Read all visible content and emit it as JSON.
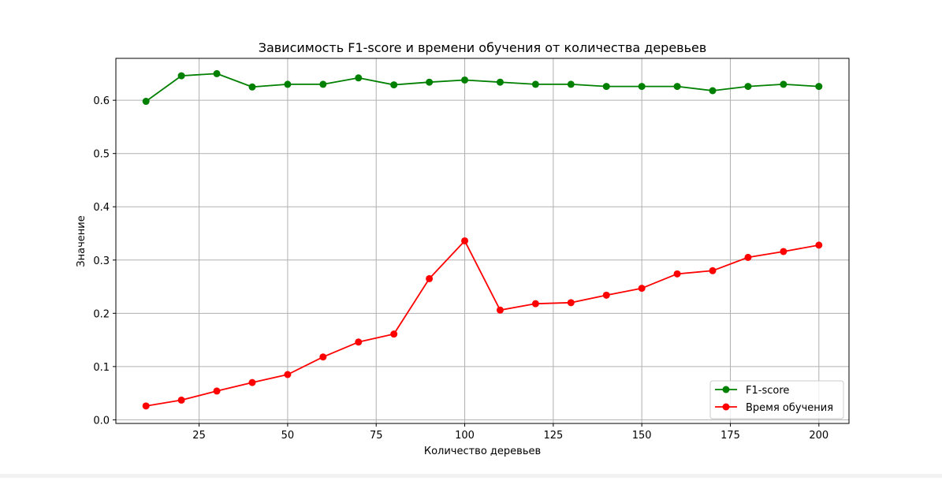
{
  "chart_data": {
    "type": "line",
    "title": "Зависимость F1-score и времени обучения от количества деревьев",
    "xlabel": "Количество деревьев",
    "ylabel": "Значение",
    "x": [
      10,
      20,
      30,
      40,
      50,
      60,
      70,
      80,
      90,
      100,
      110,
      120,
      130,
      140,
      150,
      160,
      170,
      180,
      190,
      200
    ],
    "xlim": [
      1.5,
      208.5
    ],
    "ylim": [
      -0.0068,
      0.6787
    ],
    "xticks": [
      25,
      50,
      75,
      100,
      125,
      150,
      175,
      200
    ],
    "yticks": [
      0.0,
      0.1,
      0.2,
      0.3,
      0.4,
      0.5,
      0.6
    ],
    "xtick_labels": [
      "25",
      "50",
      "75",
      "100",
      "125",
      "150",
      "175",
      "200"
    ],
    "ytick_labels": [
      "0.0",
      "0.1",
      "0.2",
      "0.3",
      "0.4",
      "0.5",
      "0.6"
    ],
    "grid": true,
    "legend_position": "lower-right",
    "series": [
      {
        "name": "F1-score",
        "color": "#008000",
        "marker": "circle",
        "values": [
          0.598,
          0.646,
          0.65,
          0.625,
          0.63,
          0.63,
          0.642,
          0.629,
          0.634,
          0.638,
          0.634,
          0.63,
          0.63,
          0.626,
          0.626,
          0.626,
          0.618,
          0.626,
          0.63,
          0.626
        ]
      },
      {
        "name": "Время обучения",
        "color": "#ff0000",
        "marker": "circle",
        "values": [
          0.026,
          0.037,
          0.054,
          0.07,
          0.085,
          0.118,
          0.146,
          0.161,
          0.265,
          0.336,
          0.206,
          0.218,
          0.22,
          0.234,
          0.247,
          0.274,
          0.28,
          0.305,
          0.316,
          0.328
        ]
      }
    ]
  }
}
